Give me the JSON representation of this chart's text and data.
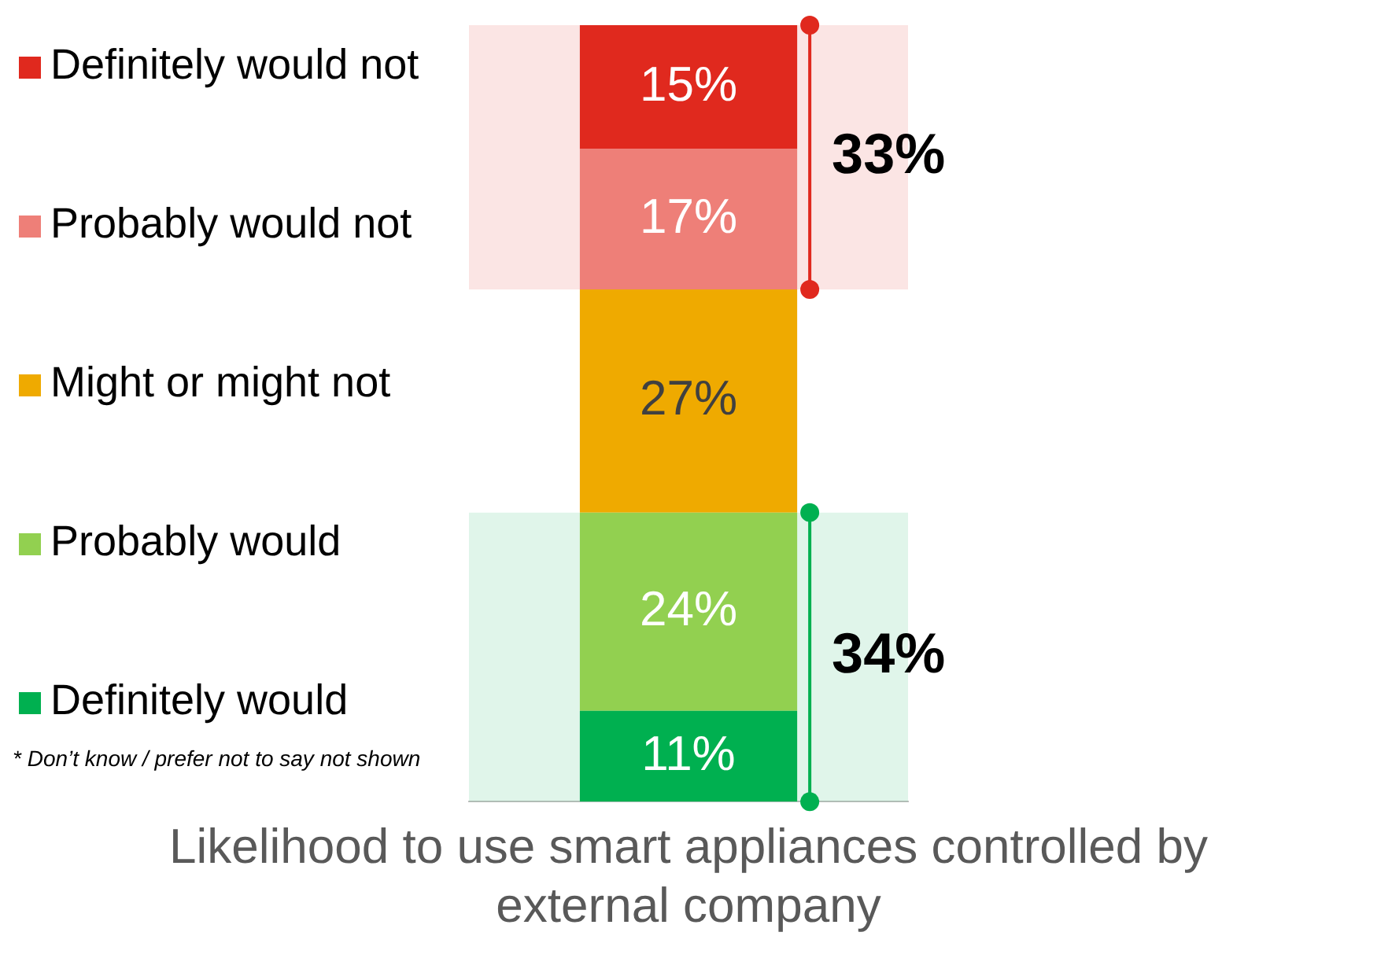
{
  "chart_data": {
    "type": "bar",
    "stacked": true,
    "categories": [
      "Likelihood to use smart appliances controlled by external company"
    ],
    "series": [
      {
        "name": "Definitely would",
        "color": "#00b050",
        "values": [
          11
        ],
        "value_labels": [
          "11%"
        ]
      },
      {
        "name": "Probably would",
        "color": "#92d050",
        "values": [
          24
        ],
        "value_labels": [
          "24%"
        ]
      },
      {
        "name": "Might or might not",
        "color": "#efaa00",
        "values": [
          27
        ],
        "value_labels": [
          "27%"
        ]
      },
      {
        "name": "Probably would not",
        "color": "#ee7f78",
        "values": [
          17
        ],
        "value_labels": [
          "17%"
        ]
      },
      {
        "name": "Definitely would not",
        "color": "#e0291e",
        "values": [
          15
        ],
        "value_labels": [
          "15%"
        ]
      }
    ],
    "bands": [
      {
        "axis": "y",
        "from": 62,
        "to": 94,
        "label": "33%",
        "color": "#e0291e"
      },
      {
        "axis": "y",
        "from": 0,
        "to": 35,
        "label": "34%",
        "color": "#00b050"
      }
    ],
    "annotations": [
      "* Don’t know / prefer not to say not shown"
    ],
    "legend": "left",
    "grid": false,
    "marker": "square"
  }
}
